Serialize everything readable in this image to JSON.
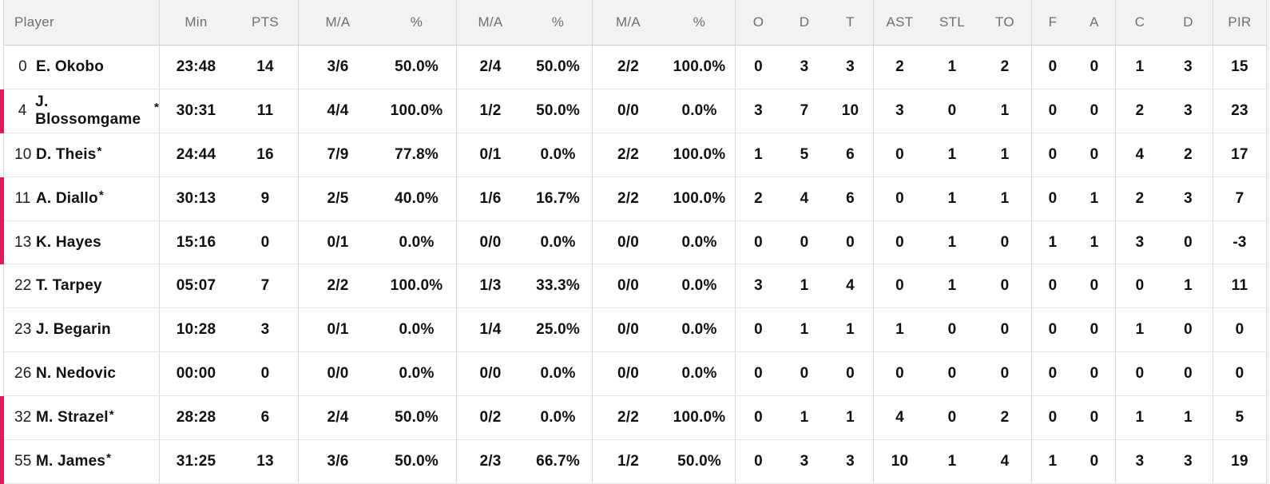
{
  "colors": {
    "accent_pink": "#e3185c",
    "header_bg": "#f2f2f2",
    "header_text": "#6f6f6f",
    "body_text": "#111111",
    "row_border": "#e5e5e5",
    "group_border": "#d9d9d9"
  },
  "table": {
    "headers": [
      "Player",
      "Min",
      "PTS",
      "M/A",
      "%",
      "M/A",
      "%",
      "M/A",
      "%",
      "O",
      "D",
      "T",
      "AST",
      "STL",
      "TO",
      "F",
      "A",
      "C",
      "D",
      "PIR"
    ],
    "group_separator_columns": [
      1,
      3,
      5,
      7,
      9,
      12,
      15,
      17,
      19
    ],
    "rows": [
      {
        "number": "0",
        "name": "E. Okobo",
        "starter": false,
        "on_court": false,
        "cells": [
          "23:48",
          "14",
          "3/6",
          "50.0%",
          "2/4",
          "50.0%",
          "2/2",
          "100.0%",
          "0",
          "3",
          "3",
          "2",
          "1",
          "2",
          "0",
          "0",
          "1",
          "3",
          "15"
        ]
      },
      {
        "number": "4",
        "name": "J. Blossomgame",
        "starter": true,
        "on_court": true,
        "cells": [
          "30:31",
          "11",
          "4/4",
          "100.0%",
          "1/2",
          "50.0%",
          "0/0",
          "0.0%",
          "3",
          "7",
          "10",
          "3",
          "0",
          "1",
          "0",
          "0",
          "2",
          "3",
          "23"
        ]
      },
      {
        "number": "10",
        "name": "D. Theis",
        "starter": true,
        "on_court": false,
        "cells": [
          "24:44",
          "16",
          "7/9",
          "77.8%",
          "0/1",
          "0.0%",
          "2/2",
          "100.0%",
          "1",
          "5",
          "6",
          "0",
          "1",
          "1",
          "0",
          "0",
          "4",
          "2",
          "17"
        ]
      },
      {
        "number": "11",
        "name": "A. Diallo",
        "starter": true,
        "on_court": true,
        "cells": [
          "30:13",
          "9",
          "2/5",
          "40.0%",
          "1/6",
          "16.7%",
          "2/2",
          "100.0%",
          "2",
          "4",
          "6",
          "0",
          "1",
          "1",
          "0",
          "1",
          "2",
          "3",
          "7"
        ]
      },
      {
        "number": "13",
        "name": "K. Hayes",
        "starter": false,
        "on_court": true,
        "cells": [
          "15:16",
          "0",
          "0/1",
          "0.0%",
          "0/0",
          "0.0%",
          "0/0",
          "0.0%",
          "0",
          "0",
          "0",
          "0",
          "1",
          "0",
          "1",
          "1",
          "3",
          "0",
          "-3"
        ]
      },
      {
        "number": "22",
        "name": "T. Tarpey",
        "starter": false,
        "on_court": false,
        "cells": [
          "05:07",
          "7",
          "2/2",
          "100.0%",
          "1/3",
          "33.3%",
          "0/0",
          "0.0%",
          "3",
          "1",
          "4",
          "0",
          "1",
          "0",
          "0",
          "0",
          "0",
          "1",
          "11"
        ]
      },
      {
        "number": "23",
        "name": "J. Begarin",
        "starter": false,
        "on_court": false,
        "cells": [
          "10:28",
          "3",
          "0/1",
          "0.0%",
          "1/4",
          "25.0%",
          "0/0",
          "0.0%",
          "0",
          "1",
          "1",
          "1",
          "0",
          "0",
          "0",
          "0",
          "1",
          "0",
          "0"
        ]
      },
      {
        "number": "26",
        "name": "N. Nedovic",
        "starter": false,
        "on_court": false,
        "cells": [
          "00:00",
          "0",
          "0/0",
          "0.0%",
          "0/0",
          "0.0%",
          "0/0",
          "0.0%",
          "0",
          "0",
          "0",
          "0",
          "0",
          "0",
          "0",
          "0",
          "0",
          "0",
          "0"
        ]
      },
      {
        "number": "32",
        "name": "M. Strazel",
        "starter": true,
        "on_court": true,
        "cells": [
          "28:28",
          "6",
          "2/4",
          "50.0%",
          "0/2",
          "0.0%",
          "2/2",
          "100.0%",
          "0",
          "1",
          "1",
          "4",
          "0",
          "2",
          "0",
          "0",
          "1",
          "1",
          "5"
        ]
      },
      {
        "number": "55",
        "name": "M. James",
        "starter": true,
        "on_court": true,
        "cells": [
          "31:25",
          "13",
          "3/6",
          "50.0%",
          "2/3",
          "66.7%",
          "1/2",
          "50.0%",
          "0",
          "3",
          "3",
          "10",
          "1",
          "4",
          "1",
          "0",
          "3",
          "3",
          "19"
        ]
      }
    ]
  }
}
